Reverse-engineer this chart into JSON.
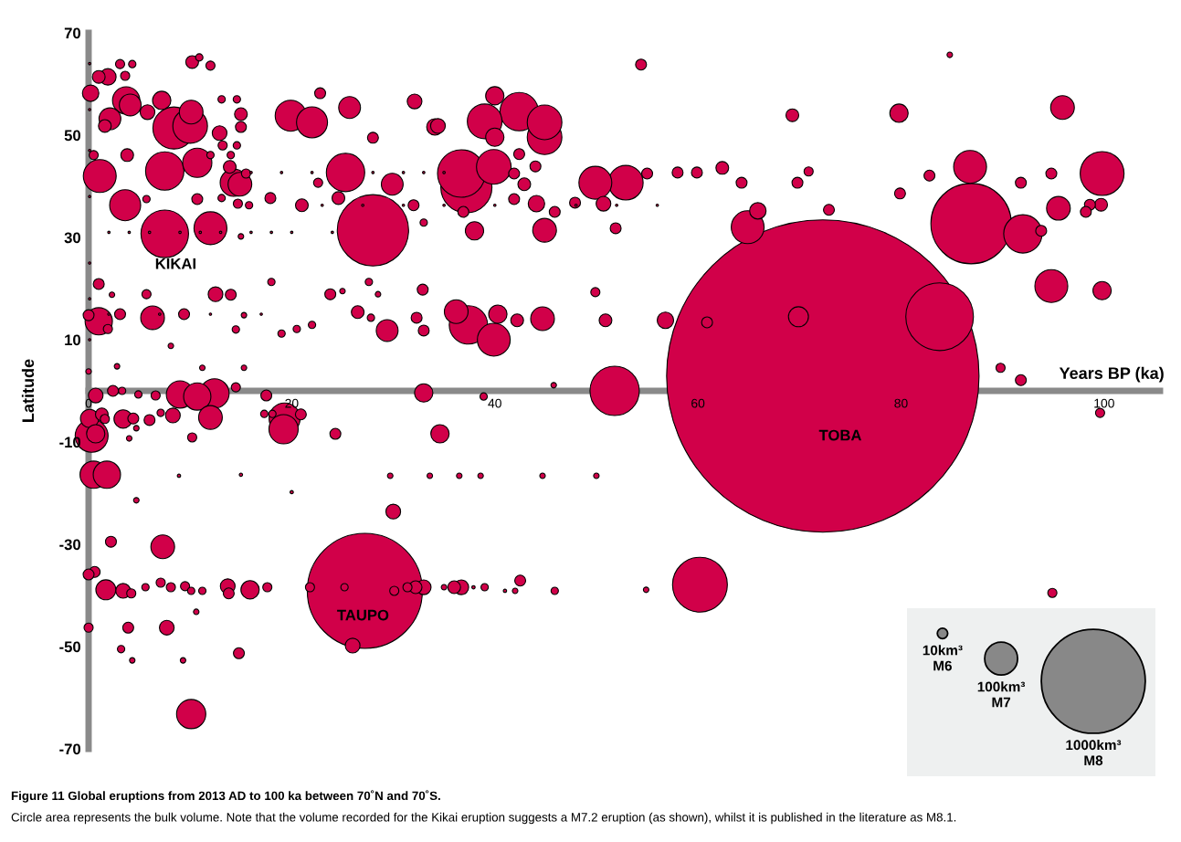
{
  "chart_data": {
    "type": "bubble",
    "xlabel": "Years BP (ka)",
    "ylabel": "Latitude",
    "xlim": [
      0,
      105.5
    ],
    "ylim": [
      -70,
      70
    ],
    "xticks": [
      0,
      20,
      40,
      60,
      80,
      100
    ],
    "yticks": [
      -70,
      -50,
      -30,
      -10,
      10,
      30,
      50,
      70
    ],
    "size_legend": [
      {
        "value": 10,
        "label": "10km³\nM6"
      },
      {
        "value": 100,
        "label": "100km³\nM7"
      },
      {
        "value": 1000,
        "label": "1000km³\nM8"
      }
    ],
    "annotations": [
      {
        "text": "KIKAI",
        "x": 7.5,
        "y": 30.7
      },
      {
        "text": "TAUPO",
        "x": 27.2,
        "y": -39.1
      },
      "TOBA",
      "Figure 11 Global eruptions from 2013 AD to 100 ka between 70˚N and 70˚S.",
      "Circle area represents the bulk volume. Note that the volume recorded for the Kikai eruption suggests a M7.2 eruption (as shown), whilst it is published in the literature as M8.1."
    ],
    "series": [
      {
        "color": "#d10049",
        "x": [
          72.3,
          27.2,
          86.9,
          28.0,
          83.8,
          60.2,
          51.8,
          37.2,
          36.7,
          7.5,
          8.4,
          92.0,
          42.4,
          37.4,
          7.5,
          25.3,
          99.8,
          10.0,
          39.0,
          44.9,
          44.9,
          39.9,
          52.9,
          1.1,
          12.0,
          94.8,
          39.9,
          64.9,
          86.8,
          0.3,
          49.9,
          19.9,
          22.0,
          3.6,
          19.3,
          10.7,
          12.4,
          19.2,
          10.1,
          3.7,
          14.3,
          1.0,
          9.0,
          10.7,
          0.5,
          1.8,
          4.1,
          2.1,
          25.7,
          29.9,
          29.4,
          10.1,
          14.9,
          6.3,
          36.2,
          44.7,
          44.9,
          95.5,
          95.9,
          12.0,
          7.3,
          1.7,
          69.9
        ],
        "values": [
          2.9,
          -39.1,
          32.7,
          31.4,
          14.5,
          -37.9,
          0.0,
          39.8,
          42.5,
          30.7,
          51.4,
          30.7,
          54.6,
          12.9,
          43.0,
          42.7,
          42.5,
          51.8,
          52.7,
          49.6,
          52.5,
          43.8,
          40.7,
          42.0,
          31.8,
          20.5,
          10.0,
          32.0,
          43.8,
          -8.8,
          40.7,
          53.8,
          52.5,
          36.3,
          -5.4,
          44.6,
          -0.5,
          -7.5,
          -63.2,
          56.8,
          40.7,
          13.6,
          -0.7,
          -1.1,
          -16.4,
          -16.4,
          55.9,
          53.2,
          55.4,
          40.4,
          11.8,
          54.5,
          40.4,
          14.3,
          15.5,
          14.1,
          31.4,
          35.7,
          55.4,
          -5.2,
          -30.5,
          -38.9,
          14.5
        ],
        "sizes": [
          9025,
          1225,
          598,
          470,
          423,
          278,
          225,
          242,
          209,
          209,
          163,
          136,
          136,
          136,
          136,
          136,
          178,
          111,
          111,
          111,
          111,
          111,
          111,
          100,
          100,
          100,
          100,
          100,
          100,
          100,
          100,
          89,
          89,
          89,
          89,
          79,
          79,
          79,
          79,
          69,
          69,
          69,
          69,
          69,
          69,
          69,
          44,
          44,
          44,
          44,
          44,
          52,
          52,
          52,
          52,
          52,
          52,
          52,
          52,
          52,
          52,
          37,
          37
        ]
      },
      {
        "color": "#d10049",
        "x": [
          7.2,
          40.0,
          40.0,
          38.0,
          40.3,
          79.8,
          99.8,
          33.0,
          0.1,
          3.4,
          0.7,
          34.6,
          15.9
        ],
        "values": [
          56.8,
          57.7,
          49.6,
          31.3,
          15.0,
          54.3,
          19.6,
          -0.4,
          -5.4,
          -5.5,
          -8.4,
          -8.4,
          -38.9
        ],
        "sizes": [
          31,
          31,
          31,
          31,
          31,
          31,
          31,
          31,
          31,
          31,
          31,
          31,
          31
        ]
      },
      {
        "color": "#d10049",
        "x": [
          1.9,
          0.2,
          34.1,
          65.9,
          44.1,
          56.8
        ],
        "values": [
          61.4,
          58.2,
          51.6,
          35.2,
          36.6,
          13.8
        ],
        "sizes": [
          25,
          25,
          25,
          25,
          25,
          25
        ]
      },
      {
        "color": "#d10049",
        "x": [
          5.8,
          12.9,
          32.1,
          34.4,
          50.7,
          12.5,
          0.7,
          8.3,
          30.0,
          3.4,
          13.7,
          33.0,
          36.7,
          7.7,
          26.0
        ],
        "values": [
          54.5,
          50.4,
          56.6,
          51.8,
          36.6,
          18.9,
          -0.9,
          -4.8,
          -23.6,
          -39.1,
          -38.2,
          -38.4,
          -38.4,
          -46.3,
          -49.8
        ],
        "sizes": [
          20,
          20,
          20,
          20,
          20,
          20,
          20,
          20,
          20,
          20,
          20,
          20,
          20,
          20,
          20
        ]
      },
      {
        "color": "#d10049",
        "x": [
          10.2,
          1.0,
          1.6,
          15.0,
          3.8,
          13.9,
          21.0,
          24.6,
          69.3,
          42.2,
          50.9,
          42.9,
          62.4,
          99.7,
          26.5,
          1.3,
          32.2,
          36.0
        ],
        "values": [
          64.3,
          61.4,
          51.8,
          54.1,
          46.1,
          43.8,
          36.3,
          37.7,
          53.9,
          13.8,
          13.8,
          40.4,
          43.6,
          36.4,
          15.4,
          -4.6,
          -38.4,
          -38.4
        ],
        "sizes": [
          15,
          15,
          15,
          15,
          15,
          15,
          15,
          15,
          15,
          15,
          15,
          15,
          15,
          15,
          15,
          15,
          15,
          15
        ]
      },
      {
        "color": "#d10049",
        "x": [
          54.4,
          22.8,
          15.0,
          28.0,
          10.7,
          17.9,
          32.0,
          1.0,
          14.0,
          32.9,
          23.8,
          0.0,
          3.1,
          9.4,
          32.3,
          33.0,
          60.9,
          55.0,
          47.9,
          41.9,
          41.9,
          45.9,
          36.9,
          42.4,
          44.0,
          51.9,
          64.3,
          59.9,
          58.0,
          72.9,
          69.8,
          79.9,
          82.8,
          91.8,
          94.8,
          98.6,
          98.2,
          93.8,
          91.8,
          2.4,
          17.5,
          4.4,
          6.0,
          20.9,
          24.3,
          2.2,
          0.6,
          0.0,
          13.8,
          42.5,
          3.9,
          14.8
        ],
        "values": [
          63.8,
          58.2,
          51.6,
          49.5,
          37.5,
          37.7,
          36.3,
          20.9,
          18.8,
          19.8,
          18.9,
          14.8,
          15.0,
          15.0,
          14.3,
          11.8,
          13.4,
          42.5,
          36.8,
          42.5,
          37.5,
          35.0,
          35.0,
          46.3,
          43.9,
          31.8,
          40.7,
          42.7,
          42.7,
          35.4,
          40.7,
          38.6,
          42.1,
          40.7,
          42.5,
          36.4,
          35.0,
          31.3,
          2.1,
          0.0,
          -0.9,
          -5.4,
          -5.7,
          -4.6,
          -8.4,
          -29.5,
          -35.4,
          -35.9,
          -39.6,
          -37.1,
          -46.3,
          -51.3
        ],
        "sizes": [
          11,
          11,
          11,
          11,
          11,
          11,
          11,
          11,
          11,
          11,
          11,
          11,
          11,
          11,
          11,
          11,
          11,
          11,
          11,
          11,
          11,
          11,
          11,
          11,
          11,
          11,
          11,
          11,
          11,
          11,
          11,
          11,
          11,
          11,
          11,
          11,
          11,
          11,
          11,
          11,
          11,
          11,
          11,
          11,
          11,
          11,
          11,
          11,
          11,
          11,
          11,
          11
        ]
      },
      {
        "color": "#d10049",
        "x": [
          3.1,
          12.0,
          3.6,
          13.2,
          0.5,
          15.5,
          14.7,
          22.6,
          5.7,
          1.9,
          49.9,
          70.9,
          89.8,
          14.5,
          6.6,
          1.6,
          10.2,
          4.2,
          7.1,
          8.1,
          9.5,
          17.6,
          21.8,
          30.1,
          31.4,
          0.0,
          94.9,
          99.6
        ],
        "values": [
          63.9,
          63.6,
          61.6,
          48.0,
          46.1,
          42.5,
          36.6,
          40.7,
          18.9,
          12.1,
          19.3,
          42.9,
          4.5,
          0.7,
          -0.9,
          -5.5,
          -9.1,
          -39.6,
          -37.5,
          -38.4,
          -38.2,
          -38.4,
          -38.4,
          -39.1,
          -38.4,
          -46.3,
          -39.5,
          -4.3
        ],
        "sizes": [
          7.7,
          7.7,
          7.7,
          7.7,
          7.7,
          7.7,
          7.7,
          7.7,
          7.7,
          7.7,
          7.7,
          7.7,
          7.7,
          7.7,
          7.7,
          7.7,
          7.7,
          7.7,
          7.7,
          7.7,
          7.7,
          7.7,
          7.7,
          7.7,
          7.7,
          7.7,
          7.7,
          7.7
        ]
      },
      {
        "color": "#d10049",
        "x": [
          10.9,
          4.3,
          13.1,
          14.6,
          14.6,
          14.0,
          12.0,
          5.7,
          13.1,
          15.8,
          33.0,
          18.0,
          27.6,
          14.5,
          19.0,
          20.5,
          22.0,
          27.8,
          3.3,
          4.9,
          38.9,
          7.1,
          17.3,
          18.1,
          5.6,
          10.1,
          11.2,
          25.2,
          39.0,
          45.9,
          3.2
        ],
        "values": [
          65.2,
          63.9,
          57.0,
          57.0,
          48.0,
          46.1,
          46.1,
          37.5,
          37.7,
          36.3,
          32.9,
          21.3,
          21.3,
          12.0,
          11.2,
          12.1,
          12.9,
          14.3,
          0.0,
          -0.7,
          -1.1,
          -4.3,
          -4.5,
          -4.5,
          -38.4,
          -39.1,
          -39.1,
          -38.4,
          -38.4,
          -39.1,
          -50.5
        ],
        "sizes": [
          5,
          5,
          5,
          5,
          5,
          5,
          5,
          5,
          5,
          5,
          5,
          5,
          5,
          5,
          5,
          5,
          5,
          5,
          5,
          5,
          5,
          5,
          5,
          5,
          5,
          5,
          5,
          5,
          5,
          5,
          5
        ]
      },
      {
        "color": "#d10049",
        "x": [
          84.8,
          15.0,
          2.3,
          25.0,
          28.5,
          15.3,
          8.1,
          0.0,
          2.8,
          11.2,
          15.3,
          45.8,
          4.0,
          4.7,
          4.7,
          29.7,
          33.6,
          36.5,
          38.6,
          44.7,
          50.0,
          35.0,
          42.0,
          4.3,
          9.3,
          10.6,
          54.9
        ],
        "values": [
          65.7,
          30.2,
          18.8,
          19.5,
          18.9,
          14.8,
          8.8,
          3.8,
          4.8,
          4.5,
          4.5,
          1.1,
          -9.3,
          -7.3,
          -21.4,
          -16.6,
          -16.6,
          -16.6,
          -16.6,
          -16.6,
          -16.6,
          -38.4,
          -39.1,
          -52.7,
          -52.7,
          -43.2,
          -38.9
        ],
        "sizes": [
          2.8,
          2.8,
          2.8,
          2.8,
          2.8,
          2.8,
          2.8,
          2.8,
          2.8,
          2.8,
          2.8,
          2.8,
          2.8,
          2.8,
          2.8,
          2.8,
          2.8,
          2.8,
          2.8,
          2.8,
          2.8,
          2.8,
          2.8,
          2.8,
          2.8,
          2.8,
          2.8
        ]
      },
      {
        "color": "#d10049",
        "x": [
          8.9,
          15.0,
          20.0,
          37.9,
          41.0
        ],
        "values": [
          -16.6,
          -16.4,
          -19.8,
          -38.4,
          -39.1
        ],
        "sizes": [
          1,
          1,
          1,
          1,
          1
        ]
      },
      {
        "color": "#d10049",
        "x": [
          2,
          4,
          6,
          9,
          11,
          13,
          16,
          18,
          20,
          24,
          23,
          27,
          31,
          35,
          40,
          48,
          52,
          56,
          16,
          19,
          22,
          28,
          31,
          33,
          35,
          2,
          7,
          12,
          17,
          0.1,
          0.1,
          0.1,
          0.1,
          0.1,
          0.1,
          0.1
        ],
        "values": [
          31.0,
          31.0,
          31.0,
          31.0,
          31.0,
          31.0,
          31.0,
          31.0,
          31.0,
          31.0,
          36.3,
          36.3,
          36.3,
          36.3,
          36.3,
          36.3,
          36.3,
          36.3,
          42.7,
          42.7,
          42.7,
          42.7,
          42.7,
          42.7,
          42.7,
          15.0,
          15.0,
          15.0,
          15.0,
          64,
          55,
          47,
          38,
          25,
          18,
          10
        ],
        "sizes": [
          0.5,
          0.5,
          0.5,
          0.5,
          0.5,
          0.5,
          0.5,
          0.5,
          0.5,
          0.5,
          0.5,
          0.5,
          0.5,
          0.5,
          0.5,
          0.5,
          0.5,
          0.5,
          0.5,
          0.5,
          0.5,
          0.5,
          0.5,
          0.5,
          0.5,
          0.5,
          0.5,
          0.5,
          0.5,
          0.5,
          0.5,
          0.5,
          0.5,
          0.5,
          0.5,
          0.5
        ]
      }
    ]
  }
}
